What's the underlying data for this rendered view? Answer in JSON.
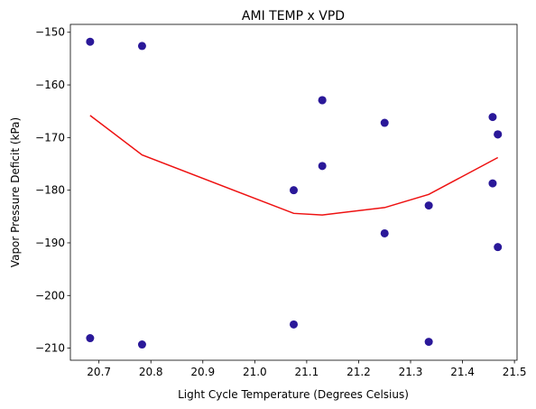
{
  "chart_data": {
    "type": "scatter",
    "title": "AMI TEMP x VPD",
    "xlabel": "Light Cycle Temperature (Degrees Celsius)",
    "ylabel": "Vapor Pressure Deficit (kPa)",
    "xlim": [
      20.645,
      21.505
    ],
    "ylim": [
      -212.3,
      -148.5
    ],
    "xticks": [
      20.7,
      20.8,
      20.9,
      21.0,
      21.1,
      21.2,
      21.3,
      21.4,
      21.5
    ],
    "xtick_labels": [
      "20.7",
      "20.8",
      "20.9",
      "21.0",
      "21.1",
      "21.2",
      "21.3",
      "21.4",
      "21.5"
    ],
    "yticks": [
      -150,
      -160,
      -170,
      -180,
      -190,
      -200,
      -210
    ],
    "ytick_labels": [
      "−150",
      "−160",
      "−170",
      "−180",
      "−190",
      "−200",
      "−210"
    ],
    "grid": false,
    "legend": "none",
    "colors": {
      "points": "#2a1899",
      "trend": "#ee1111"
    },
    "series": [
      {
        "kind": "scatter",
        "x": [
          20.683,
          20.683,
          20.783,
          20.783,
          21.075,
          21.075,
          21.13,
          21.13,
          21.13,
          21.25,
          21.25,
          21.335,
          21.335,
          21.458,
          21.458,
          21.468,
          21.468,
          21.468
        ],
        "y": [
          -151.8,
          -208.1,
          -152.6,
          -209.3,
          -180.0,
          -205.5,
          -162.9,
          -162.9,
          -175.4,
          -167.2,
          -188.2,
          -182.9,
          -208.8,
          -166.1,
          -178.7,
          -169.4,
          -169.4,
          -190.8
        ]
      },
      {
        "kind": "line",
        "x": [
          20.683,
          20.783,
          21.075,
          21.13,
          21.25,
          21.335,
          21.468
        ],
        "y": [
          -165.8,
          -173.3,
          -184.4,
          -184.7,
          -183.3,
          -180.8,
          -173.8
        ]
      }
    ]
  }
}
